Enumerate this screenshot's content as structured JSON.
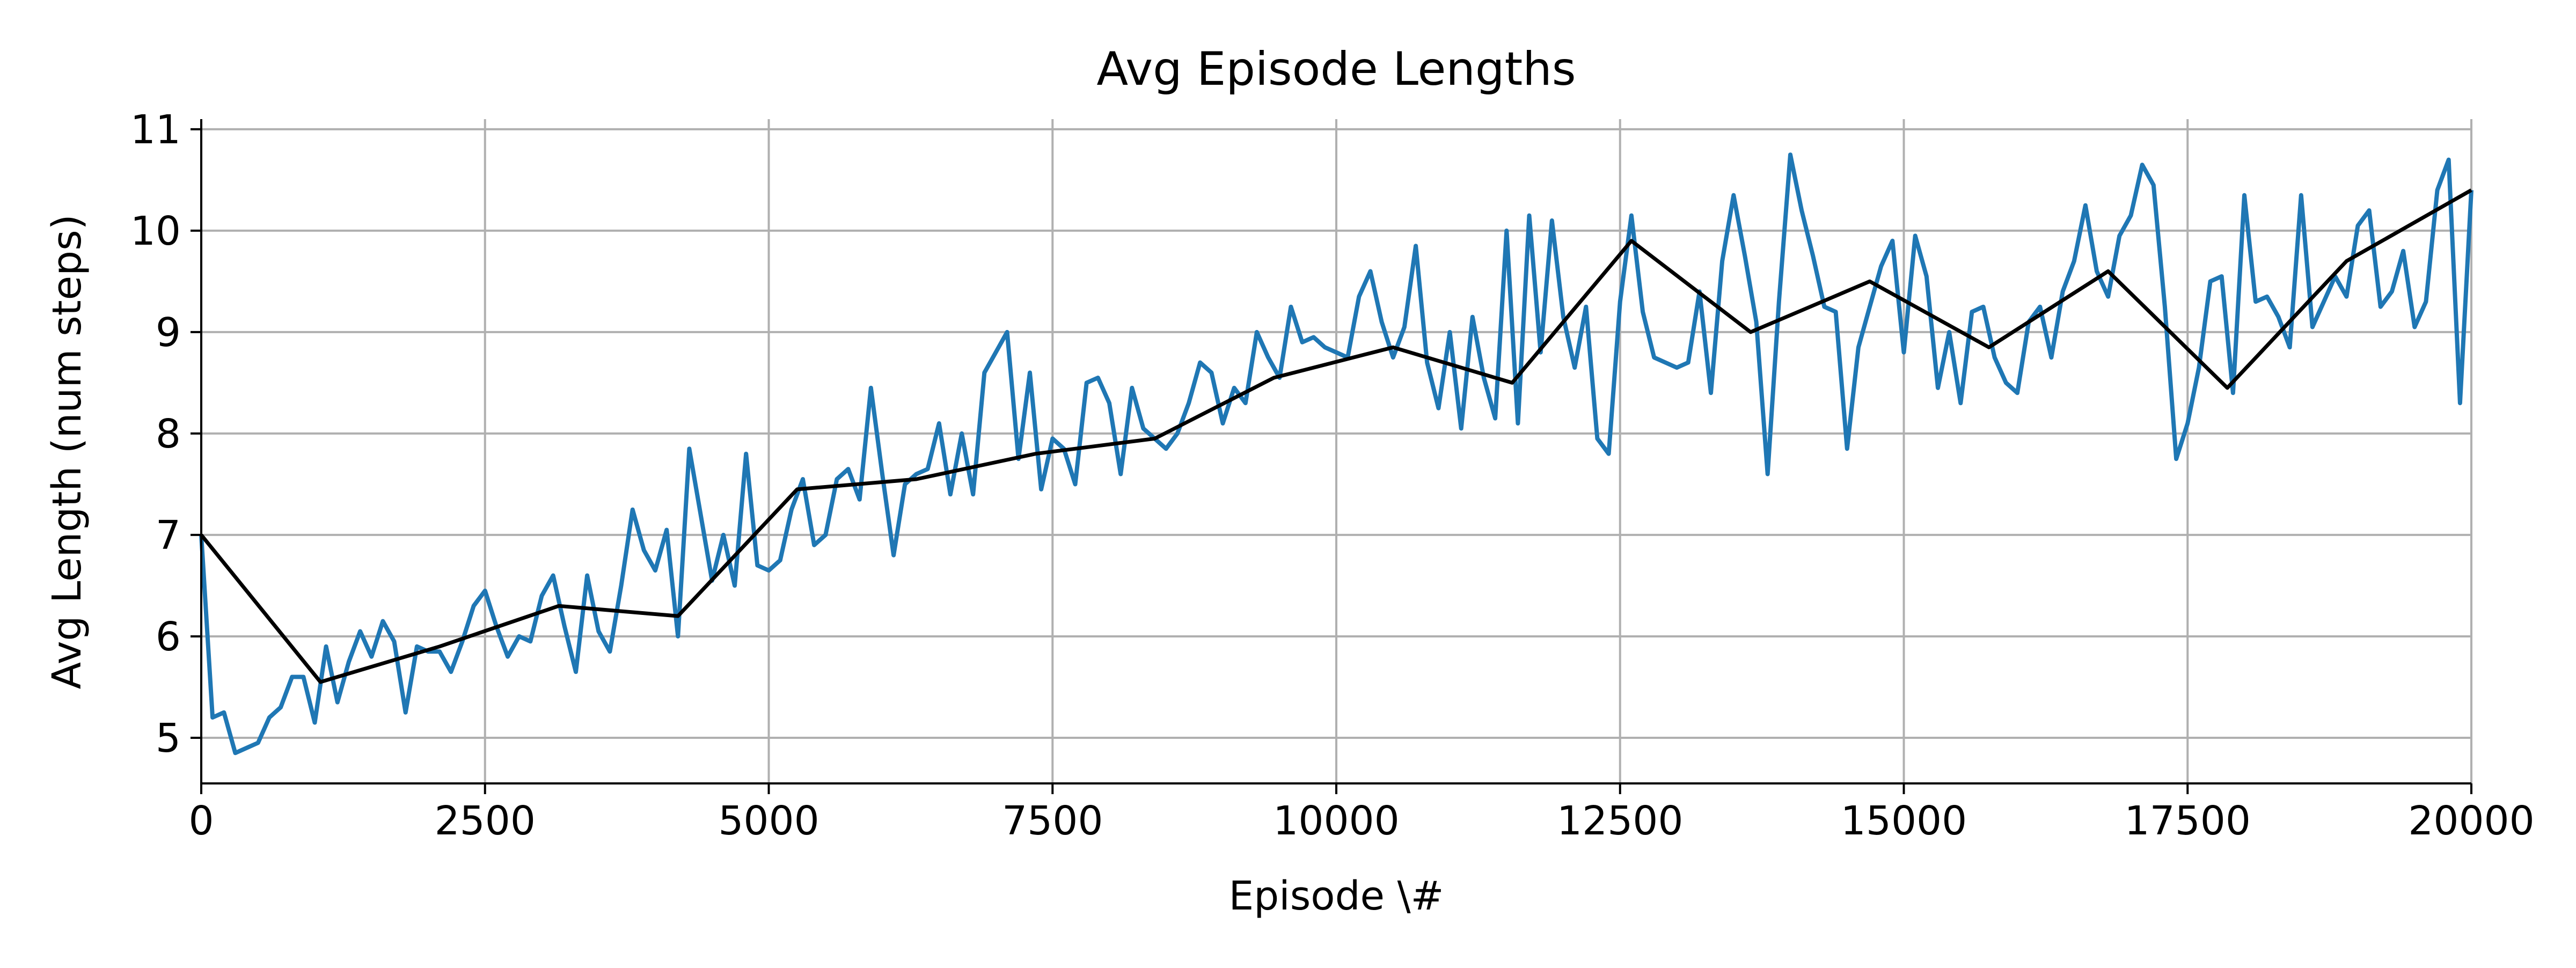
{
  "chart_data": {
    "type": "line",
    "title": "Avg Episode Lengths",
    "xlabel": "Episode \\#",
    "ylabel": "Avg Length (num steps)",
    "xlim": [
      0,
      20000
    ],
    "ylim": [
      4.55,
      11.1
    ],
    "grid": true,
    "legend": "none",
    "x_ticks": [
      0,
      2500,
      5000,
      7500,
      10000,
      12500,
      15000,
      17500,
      20000
    ],
    "y_ticks": [
      5,
      6,
      7,
      8,
      9,
      10,
      11
    ],
    "series": [
      {
        "color": "#1f77b4",
        "x": [
          0,
          100,
          200,
          300,
          400,
          500,
          600,
          700,
          800,
          900,
          1000,
          1100,
          1200,
          1300,
          1400,
          1500,
          1600,
          1700,
          1800,
          1900,
          2000,
          2100,
          2200,
          2300,
          2400,
          2500,
          2600,
          2700,
          2800,
          2900,
          3000,
          3100,
          3200,
          3300,
          3400,
          3500,
          3600,
          3700,
          3800,
          3900,
          4000,
          4100,
          4200,
          4300,
          4400,
          4500,
          4600,
          4700,
          4800,
          4900,
          5000,
          5100,
          5200,
          5300,
          5400,
          5500,
          5600,
          5700,
          5800,
          5900,
          6000,
          6100,
          6200,
          6300,
          6400,
          6500,
          6600,
          6700,
          6800,
          6900,
          7000,
          7100,
          7200,
          7300,
          7400,
          7500,
          7600,
          7700,
          7800,
          7900,
          8000,
          8100,
          8200,
          8300,
          8400,
          8500,
          8600,
          8700,
          8800,
          8900,
          9000,
          9100,
          9200,
          9300,
          9400,
          9500,
          9600,
          9700,
          9800,
          9900,
          10000,
          10100,
          10200,
          10300,
          10400,
          10500,
          10600,
          10700,
          10800,
          10900,
          11000,
          11100,
          11200,
          11300,
          11400,
          11500,
          11600,
          11700,
          11800,
          11900,
          12000,
          12100,
          12200,
          12300,
          12400,
          12500,
          12600,
          12700,
          12800,
          12900,
          13000,
          13100,
          13200,
          13300,
          13400,
          13500,
          13600,
          13700,
          13800,
          13900,
          14000,
          14100,
          14200,
          14300,
          14400,
          14500,
          14600,
          14700,
          14800,
          14900,
          15000,
          15100,
          15200,
          15300,
          15400,
          15500,
          15600,
          15700,
          15800,
          15900,
          16000,
          16100,
          16200,
          16300,
          16400,
          16500,
          16600,
          16700,
          16800,
          16900,
          17000,
          17100,
          17200,
          17300,
          17400,
          17500,
          17600,
          17700,
          17800,
          17900,
          18000,
          18100,
          18200,
          18300,
          18400,
          18500,
          18600,
          18700,
          18800,
          18900,
          19000,
          19100,
          19200,
          19300,
          19400,
          19500,
          19600,
          19700,
          19800,
          19900,
          20000
        ],
        "y": [
          7.0,
          5.2,
          5.25,
          4.85,
          4.9,
          4.95,
          5.2,
          5.3,
          5.6,
          5.6,
          5.15,
          5.9,
          5.35,
          5.75,
          6.05,
          5.8,
          6.15,
          5.95,
          5.25,
          5.9,
          5.85,
          5.85,
          5.65,
          5.95,
          6.3,
          6.45,
          6.1,
          5.8,
          6.0,
          5.95,
          6.4,
          6.6,
          6.1,
          5.65,
          6.6,
          6.05,
          5.85,
          6.5,
          7.25,
          6.85,
          6.65,
          7.05,
          6.0,
          7.85,
          7.2,
          6.55,
          7.0,
          6.5,
          7.8,
          6.7,
          6.65,
          6.75,
          7.25,
          7.55,
          6.9,
          7.0,
          7.55,
          7.65,
          7.35,
          8.45,
          7.6,
          6.8,
          7.5,
          7.6,
          7.65,
          8.1,
          7.4,
          8.0,
          7.4,
          8.6,
          8.8,
          9.0,
          7.75,
          8.6,
          7.45,
          7.95,
          7.85,
          7.5,
          8.5,
          8.55,
          8.3,
          7.6,
          8.45,
          8.05,
          7.95,
          7.85,
          8.0,
          8.3,
          8.7,
          8.6,
          8.1,
          8.45,
          8.3,
          9.0,
          8.75,
          8.55,
          9.25,
          8.9,
          8.95,
          8.85,
          8.8,
          8.75,
          9.35,
          9.6,
          9.1,
          8.75,
          9.05,
          9.85,
          8.7,
          8.25,
          9.0,
          8.05,
          9.15,
          8.55,
          8.15,
          10.0,
          8.1,
          10.15,
          8.8,
          10.1,
          9.15,
          8.65,
          9.25,
          7.95,
          7.8,
          9.3,
          10.15,
          9.2,
          8.75,
          8.7,
          8.65,
          8.7,
          9.4,
          8.4,
          9.7,
          10.35,
          9.75,
          9.1,
          7.6,
          9.3,
          10.75,
          10.2,
          9.75,
          9.25,
          9.2,
          7.85,
          8.85,
          9.25,
          9.65,
          9.9,
          8.8,
          9.95,
          9.55,
          8.45,
          9.0,
          8.3,
          9.2,
          9.25,
          8.75,
          8.5,
          8.4,
          9.1,
          9.25,
          8.75,
          9.4,
          9.7,
          10.25,
          9.6,
          9.35,
          9.95,
          10.15,
          10.65,
          10.45,
          9.25,
          7.75,
          8.1,
          8.65,
          9.5,
          9.55,
          8.4,
          10.35,
          9.3,
          9.35,
          9.15,
          8.85,
          10.35,
          9.05,
          9.3,
          9.55,
          9.35,
          10.05,
          10.2,
          9.25,
          9.4,
          9.8,
          9.05,
          9.3,
          10.4,
          10.7,
          8.3,
          10.4
        ]
      },
      {
        "color": "#000000",
        "x": [
          0,
          1050,
          2100,
          3150,
          4200,
          5250,
          6300,
          7350,
          8400,
          9450,
          10500,
          11550,
          12600,
          13650,
          14700,
          15750,
          16800,
          17850,
          18900,
          20000
        ],
        "y": [
          7.0,
          5.55,
          5.9,
          6.3,
          6.2,
          7.45,
          7.55,
          7.8,
          7.95,
          8.55,
          8.85,
          8.5,
          9.9,
          9.0,
          9.5,
          8.85,
          9.6,
          8.45,
          9.7,
          10.4
        ]
      }
    ]
  }
}
